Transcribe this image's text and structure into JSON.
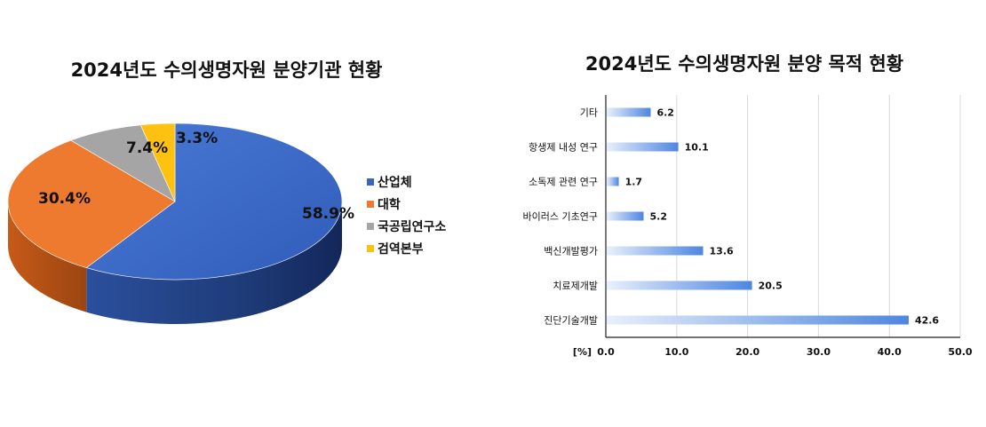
{
  "chart_data": [
    {
      "type": "pie",
      "title": "2024년도 수의생명자원 분양기관 현황",
      "categories": [
        "산업체",
        "대학",
        "국공립연구소",
        "검역본부"
      ],
      "values": [
        58.9,
        30.4,
        7.4,
        3.3
      ],
      "value_labels": [
        "58.9%",
        "30.4%",
        "7.4%",
        "3.3%"
      ],
      "colors": [
        "#3465c7",
        "#ee7a30",
        "#a5a5a5",
        "#fdc111"
      ],
      "legend": "right",
      "style": "3d"
    },
    {
      "type": "bar",
      "orientation": "horizontal",
      "title": "2024년도 수의생명자원 분양 목적 현황",
      "categories": [
        "기타",
        "항생제 내성 연구",
        "소독제 관련 연구",
        "바이러스 기초연구",
        "백신개발평가",
        "치료제개발",
        "진단기술개발"
      ],
      "values": [
        6.2,
        10.1,
        1.7,
        5.2,
        13.6,
        20.5,
        42.6
      ],
      "value_labels": [
        "6.2",
        "10.1",
        "1.7",
        "5.2",
        "13.6",
        "20.5",
        "42.6"
      ],
      "xlim": [
        0,
        50
      ],
      "xticks": [
        "0.0",
        "10.0",
        "20.0",
        "30.0",
        "40.0",
        "50.0"
      ],
      "xunit": "[%]",
      "grid": true,
      "bar_color": "#4e86e0"
    }
  ]
}
